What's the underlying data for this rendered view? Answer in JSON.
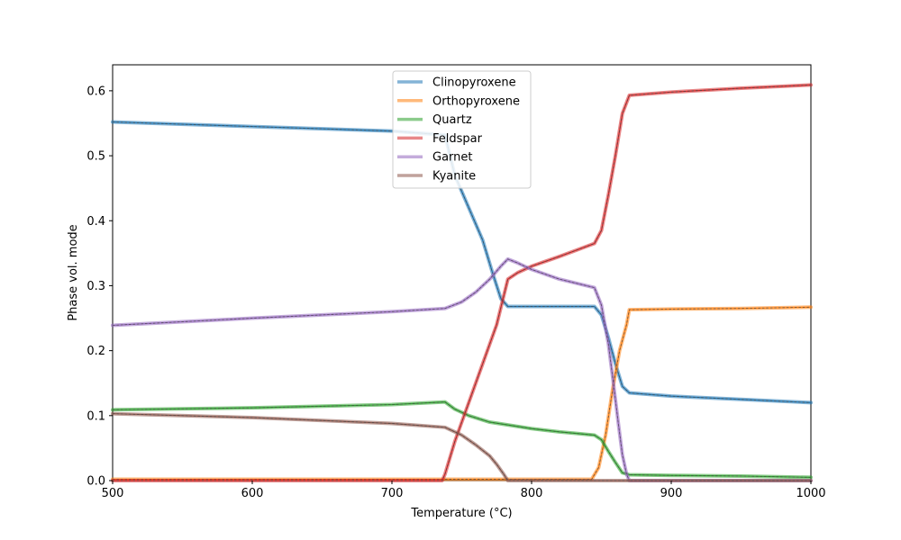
{
  "chart_data": {
    "type": "line",
    "title": "",
    "xlabel": "Temperature (°C)",
    "ylabel": "Phase vol. mode",
    "xlim": [
      500,
      1000
    ],
    "ylim": [
      0,
      0.64
    ],
    "xticks": [
      500,
      600,
      700,
      800,
      900,
      1000
    ],
    "yticks": [
      0.0,
      0.1,
      0.2,
      0.3,
      0.4,
      0.5,
      0.6
    ],
    "xtick_labels": [
      "500",
      "600",
      "700",
      "800",
      "900",
      "1000"
    ],
    "ytick_labels": [
      "0.0",
      "0.1",
      "0.2",
      "0.3",
      "0.4",
      "0.5",
      "0.6"
    ],
    "grid": false,
    "legend_position": "upper-center",
    "series": [
      {
        "name": "Clinopyroxene",
        "color": "#1f77b4",
        "x": [
          500,
          600,
          700,
          738,
          745,
          755,
          765,
          772,
          778,
          783,
          800,
          820,
          845,
          850,
          855,
          860,
          865,
          870,
          900,
          950,
          1000
        ],
        "y": [
          0.552,
          0.545,
          0.538,
          0.532,
          0.47,
          0.42,
          0.37,
          0.32,
          0.28,
          0.268,
          0.268,
          0.268,
          0.268,
          0.255,
          0.22,
          0.18,
          0.145,
          0.135,
          0.13,
          0.125,
          0.12
        ]
      },
      {
        "name": "Orthopyroxene",
        "color": "#ff7f0e",
        "x": [
          500,
          600,
          700,
          800,
          843,
          848,
          853,
          858,
          863,
          868,
          870,
          900,
          950,
          1000
        ],
        "y": [
          0.002,
          0.002,
          0.002,
          0.002,
          0.002,
          0.02,
          0.07,
          0.14,
          0.2,
          0.24,
          0.263,
          0.264,
          0.265,
          0.267
        ]
      },
      {
        "name": "Quartz",
        "color": "#2ca02c",
        "x": [
          500,
          600,
          700,
          738,
          745,
          755,
          770,
          785,
          800,
          820,
          845,
          850,
          855,
          860,
          865,
          870,
          900,
          950,
          1000
        ],
        "y": [
          0.109,
          0.112,
          0.117,
          0.121,
          0.11,
          0.1,
          0.09,
          0.085,
          0.08,
          0.075,
          0.07,
          0.063,
          0.045,
          0.028,
          0.012,
          0.009,
          0.008,
          0.007,
          0.005
        ]
      },
      {
        "name": "Feldspar",
        "color": "#d62728",
        "x": [
          500,
          600,
          700,
          736,
          738,
          745,
          755,
          765,
          775,
          783,
          790,
          800,
          820,
          845,
          850,
          855,
          860,
          865,
          870,
          900,
          950,
          1000
        ],
        "y": [
          0.0,
          0.0,
          0.0,
          0.0,
          0.01,
          0.06,
          0.12,
          0.18,
          0.24,
          0.31,
          0.32,
          0.33,
          0.345,
          0.365,
          0.385,
          0.44,
          0.5,
          0.565,
          0.593,
          0.598,
          0.604,
          0.609
        ]
      },
      {
        "name": "Garnet",
        "color": "#9467bd",
        "x": [
          500,
          600,
          700,
          738,
          750,
          760,
          770,
          778,
          783,
          790,
          800,
          820,
          845,
          850,
          855,
          858,
          862,
          865,
          868,
          870,
          900,
          950,
          1000
        ],
        "y": [
          0.239,
          0.25,
          0.26,
          0.265,
          0.275,
          0.29,
          0.31,
          0.33,
          0.341,
          0.335,
          0.325,
          0.31,
          0.297,
          0.27,
          0.21,
          0.16,
          0.09,
          0.04,
          0.01,
          0.0,
          0.0,
          0.0,
          0.0
        ]
      },
      {
        "name": "Kyanite",
        "color": "#8c564b",
        "x": [
          500,
          600,
          700,
          738,
          750,
          760,
          770,
          775,
          780,
          783,
          800,
          900,
          1000
        ],
        "y": [
          0.103,
          0.097,
          0.088,
          0.082,
          0.07,
          0.055,
          0.038,
          0.025,
          0.01,
          0.0,
          0.0,
          0.0,
          0.0
        ]
      }
    ]
  }
}
